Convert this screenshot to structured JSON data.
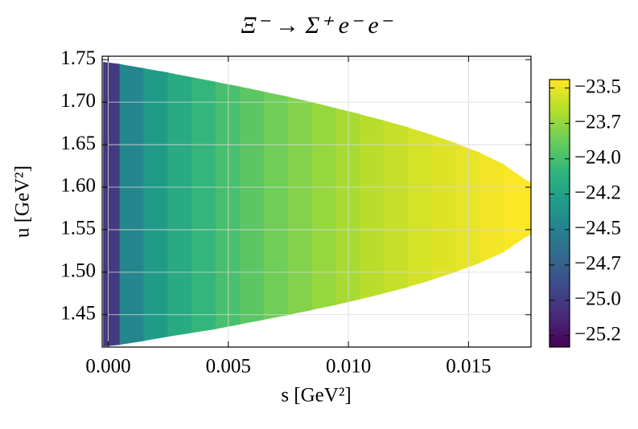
{
  "chart_data": {
    "type": "density",
    "title": "Ξ⁻ → Σ⁺ e⁻ e⁻",
    "x_label": "s [GeV²]",
    "y_label": "u [GeV²]",
    "x": [
      0,
      0.001,
      0.002,
      0.003,
      0.004,
      0.005,
      0.006,
      0.007,
      0.008,
      0.009,
      0.01,
      0.011,
      0.012,
      0.013,
      0.014,
      0.015,
      0.016,
      0.017,
      0.0175
    ],
    "ylow": [
      1.413,
      1.417,
      1.422,
      1.427,
      1.431,
      1.436,
      1.442,
      1.447,
      1.453,
      1.459,
      1.465,
      1.472,
      1.479,
      1.487,
      1.496,
      1.506,
      1.517,
      1.532,
      1.547
    ],
    "yhigh": [
      1.747,
      1.742,
      1.737,
      1.732,
      1.726,
      1.721,
      1.715,
      1.709,
      1.703,
      1.696,
      1.689,
      1.682,
      1.674,
      1.666,
      1.656,
      1.646,
      1.634,
      1.618,
      1.603
    ],
    "values": [
      -25.0,
      -24.45,
      -24.3,
      -24.18,
      -24.08,
      -24.0,
      -23.93,
      -23.86,
      -23.8,
      -23.74,
      -23.69,
      -23.64,
      -23.6,
      -23.56,
      -23.53,
      -23.5,
      -23.47,
      -23.45,
      -23.44
    ],
    "colormap": "viridis",
    "xlim": [
      -0.00025,
      0.0176
    ],
    "ylim": [
      1.412,
      1.754
    ],
    "clim": [
      -25.33,
      -23.44
    ],
    "xticks": [
      {
        "value": 0,
        "label": "0.000"
      },
      {
        "value": 0.005,
        "label": "0.005"
      },
      {
        "value": 0.01,
        "label": "0.010"
      },
      {
        "value": 0.015,
        "label": "0.015"
      }
    ],
    "yticks": [
      {
        "value": 1.45,
        "label": "1.45"
      },
      {
        "value": 1.5,
        "label": "1.50"
      },
      {
        "value": 1.55,
        "label": "1.55"
      },
      {
        "value": 1.6,
        "label": "1.60"
      },
      {
        "value": 1.65,
        "label": "1.65"
      },
      {
        "value": 1.7,
        "label": "1.70"
      },
      {
        "value": 1.75,
        "label": "1.75"
      }
    ],
    "cticks": [
      {
        "value": -25.25,
        "label": "−25.2"
      },
      {
        "value": -25.0,
        "label": "−25.0"
      },
      {
        "value": -24.75,
        "label": "−24.7"
      },
      {
        "value": -24.5,
        "label": "−24.5"
      },
      {
        "value": -24.25,
        "label": "−24.2"
      },
      {
        "value": -24.0,
        "label": "−24.0"
      },
      {
        "value": -23.75,
        "label": "−23.7"
      },
      {
        "value": -23.5,
        "label": "−23.5"
      }
    ],
    "grid": true
  }
}
